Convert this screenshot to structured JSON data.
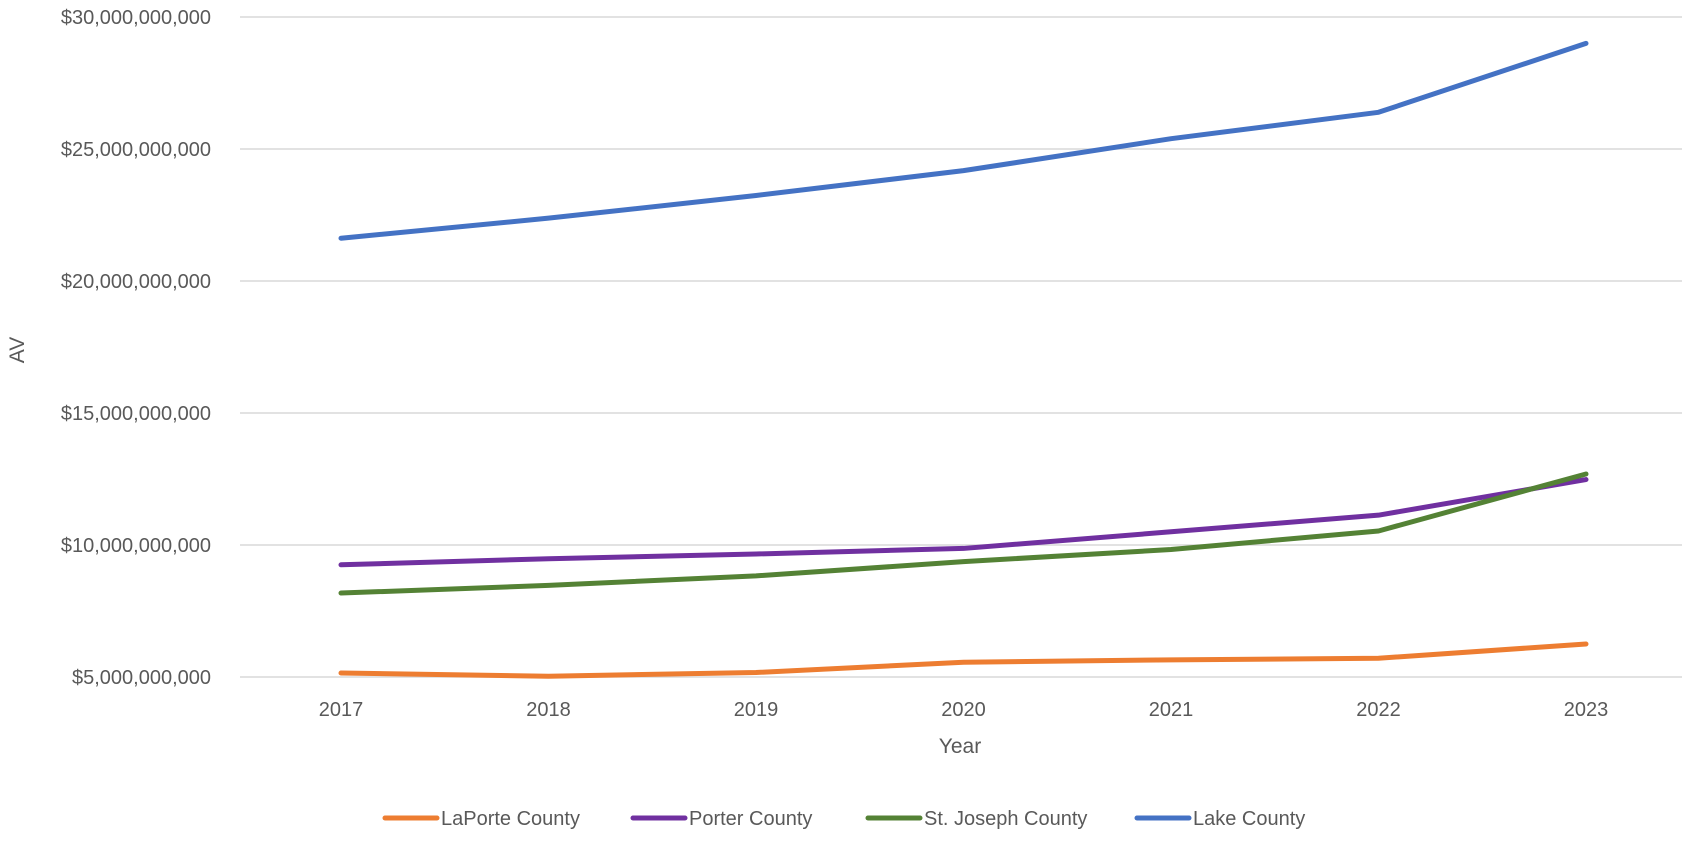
{
  "chart_data": {
    "type": "line",
    "title": "",
    "xlabel": "Year",
    "ylabel": "AV",
    "categories": [
      "2017",
      "2018",
      "2019",
      "2020",
      "2021",
      "2022",
      "2023"
    ],
    "ylim": [
      5000000000,
      30000000000
    ],
    "yticks": [
      5000000000,
      10000000000,
      15000000000,
      20000000000,
      25000000000,
      30000000000
    ],
    "ytick_labels": [
      "$5,000,000,000",
      "$10,000,000,000",
      "$15,000,000,000",
      "$20,000,000,000",
      "$25,000,000,000",
      "$30,000,000,000"
    ],
    "grid": true,
    "legend_position": "bottom",
    "series": [
      {
        "name": "LaPorte County",
        "color": "#ED7D31",
        "values": [
          5150000000,
          5030000000,
          5170000000,
          5560000000,
          5650000000,
          5710000000,
          6250000000
        ]
      },
      {
        "name": "Porter County",
        "color": "#7030A0",
        "values": [
          9250000000,
          9480000000,
          9660000000,
          9870000000,
          10500000000,
          11130000000,
          12480000000
        ]
      },
      {
        "name": "St. Joseph County",
        "color": "#548235",
        "values": [
          8180000000,
          8470000000,
          8830000000,
          9370000000,
          9830000000,
          10530000000,
          12690000000
        ]
      },
      {
        "name": "Lake County",
        "color": "#4472C4",
        "values": [
          21620000000,
          22380000000,
          23240000000,
          24180000000,
          25390000000,
          26390000000,
          29000000000
        ]
      }
    ]
  }
}
